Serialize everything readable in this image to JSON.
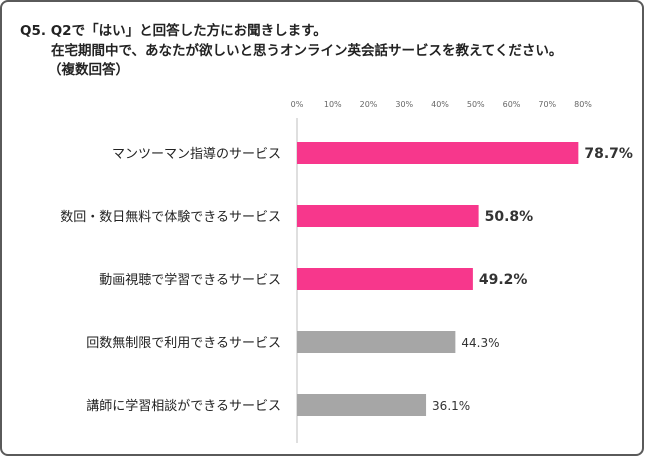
{
  "question": {
    "line1": "Q5. Q2で「はい」と回答した方にお聞きします。",
    "line2": "在宅期間中で、あなたが欲しいと思うオンライン英会話サービスを教えてください。",
    "line3": "（複数回答）"
  },
  "chart_data": {
    "type": "bar",
    "orientation": "horizontal",
    "categories": [
      "マンツーマン指導のサービス",
      "数回・数日無料で体験できるサービス",
      "動画視聴で学習できるサービス",
      "回数無制限で利用できるサービス",
      "講師に学習相談ができるサービス"
    ],
    "values": [
      78.7,
      50.8,
      49.2,
      44.3,
      36.1
    ],
    "value_labels": [
      "78.7%",
      "50.8%",
      "49.2%",
      "44.3%",
      "36.1%"
    ],
    "highlighted": [
      true,
      true,
      true,
      false,
      false
    ],
    "colors": {
      "highlight": "#f7378c",
      "normal": "#a6a6a6",
      "axis": "#bfbfbf"
    },
    "xticks": [
      "0%",
      "10%",
      "20%",
      "30%",
      "40%",
      "50%",
      "60%",
      "70%",
      "80%"
    ],
    "xlim": [
      0,
      80
    ],
    "grid": false
  }
}
